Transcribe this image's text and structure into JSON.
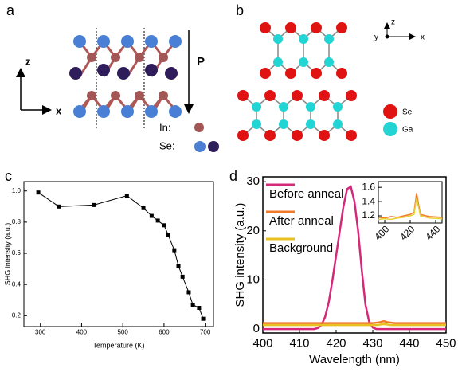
{
  "panels": {
    "a": {
      "label": "a",
      "axis_z": "z",
      "axis_x": "x",
      "polarization": "P",
      "in_label": "In:",
      "se_label": "Se:"
    },
    "b": {
      "label": "b",
      "axis_z": "z",
      "axis_y": "y",
      "axis_x": "x",
      "se_label": "Se",
      "ga_label": "Ga"
    },
    "c": {
      "label": "c"
    },
    "d": {
      "label": "d"
    }
  },
  "chart_data": [
    {
      "type": "line",
      "xlabel": "Temperature (K)",
      "ylabel": "SHG intensity (a.u.)",
      "marker": "square",
      "color": "#000000",
      "x": [
        295,
        345,
        430,
        510,
        550,
        570,
        585,
        600,
        610,
        625,
        635,
        645,
        660,
        670,
        685,
        695
      ],
      "values": [
        0.99,
        0.9,
        0.91,
        0.97,
        0.89,
        0.84,
        0.81,
        0.78,
        0.72,
        0.62,
        0.52,
        0.45,
        0.35,
        0.27,
        0.25,
        0.18
      ],
      "xlim": [
        260,
        720
      ],
      "ylim": [
        0.13,
        1.06
      ],
      "xticks": [
        300,
        400,
        500,
        600,
        700
      ],
      "yticks": [
        0.2,
        0.4,
        0.6,
        0.8,
        {
          "value": 1,
          "label": "1.0"
        }
      ]
    },
    {
      "type": "line",
      "xlabel": "Wavelength (nm)",
      "ylabel": "SHG intensity (a.u.)",
      "legend": "upper left",
      "x": [
        400,
        401,
        402,
        403,
        404,
        405,
        406,
        407,
        408,
        409,
        410,
        411,
        412,
        413,
        414,
        415,
        416,
        417,
        418,
        419,
        420,
        421,
        422,
        423,
        424,
        425,
        426,
        427,
        428,
        429,
        430,
        431,
        432,
        433,
        434,
        435,
        436,
        437,
        438,
        439,
        440,
        441,
        442,
        443,
        444,
        445,
        446,
        447,
        448,
        449,
        450
      ],
      "series": [
        {
          "name": "Before anneal",
          "color": "#d6287a",
          "values": [
            0,
            0,
            0,
            0,
            0,
            0,
            0,
            0,
            0,
            0,
            0,
            0,
            0,
            0,
            0,
            0.2,
            0.8,
            2.5,
            5.5,
            10,
            15,
            20,
            25,
            28.5,
            29,
            26,
            20,
            12,
            5,
            1.5,
            0.3,
            0,
            0,
            0,
            0,
            0,
            0,
            0,
            0,
            0,
            0,
            0,
            0,
            0,
            0,
            0,
            0,
            0,
            0,
            0,
            0
          ]
        },
        {
          "name": "After anneal",
          "color": "#f07a28",
          "values": [
            1.2,
            1.2,
            1.2,
            1.2,
            1.2,
            1.2,
            1.2,
            1.2,
            1.2,
            1.2,
            1.2,
            1.2,
            1.2,
            1.2,
            1.2,
            1.2,
            1.2,
            1.2,
            1.2,
            1.2,
            1.2,
            1.2,
            1.2,
            1.2,
            1.2,
            1.2,
            1.2,
            1.2,
            1.2,
            1.2,
            1.2,
            1.3,
            1.4,
            1.6,
            1.4,
            1.3,
            1.2,
            1.2,
            1.2,
            1.2,
            1.2,
            1.2,
            1.2,
            1.2,
            1.2,
            1.2,
            1.2,
            1.2,
            1.2,
            1.2,
            1.2
          ]
        },
        {
          "name": "Background",
          "color": "#e8c020",
          "values": [
            0.8,
            0.8,
            0.8,
            0.8,
            0.8,
            0.8,
            0.8,
            0.8,
            0.8,
            0.8,
            0.8,
            0.8,
            0.8,
            0.8,
            0.8,
            0.8,
            0.8,
            0.8,
            0.8,
            0.8,
            0.8,
            0.8,
            0.8,
            0.8,
            0.8,
            0.8,
            0.8,
            0.8,
            0.8,
            0.8,
            0.8,
            0.8,
            0.9,
            1.0,
            0.9,
            0.8,
            0.8,
            0.8,
            0.8,
            0.8,
            0.8,
            0.8,
            0.8,
            0.8,
            0.8,
            0.8,
            0.8,
            0.8,
            0.8,
            0.8,
            0.8
          ]
        }
      ],
      "xlim": [
        400,
        450
      ],
      "ylim": [
        -0.8,
        31
      ],
      "xticks": [
        400,
        410,
        420,
        430,
        440,
        450
      ],
      "yticks": [
        0,
        10,
        20,
        30
      ]
    },
    {
      "type": "line",
      "x": [
        395,
        400,
        405,
        410,
        415,
        420,
        423,
        425,
        428,
        435,
        445
      ],
      "series": [
        {
          "color": "#f07a28",
          "values": [
            1.18,
            1.17,
            1.19,
            1.18,
            1.2,
            1.22,
            1.25,
            1.52,
            1.22,
            1.19,
            1.18
          ]
        },
        {
          "color": "#e8d030",
          "values": [
            1.15,
            1.16,
            1.15,
            1.17,
            1.18,
            1.2,
            1.22,
            1.45,
            1.2,
            1.17,
            1.16
          ]
        }
      ],
      "xlim": [
        395,
        445
      ],
      "ylim": [
        1.1,
        1.68
      ],
      "xticks": [
        400,
        420,
        440
      ],
      "yticks": [
        1.2,
        1.4,
        1.6
      ]
    }
  ]
}
